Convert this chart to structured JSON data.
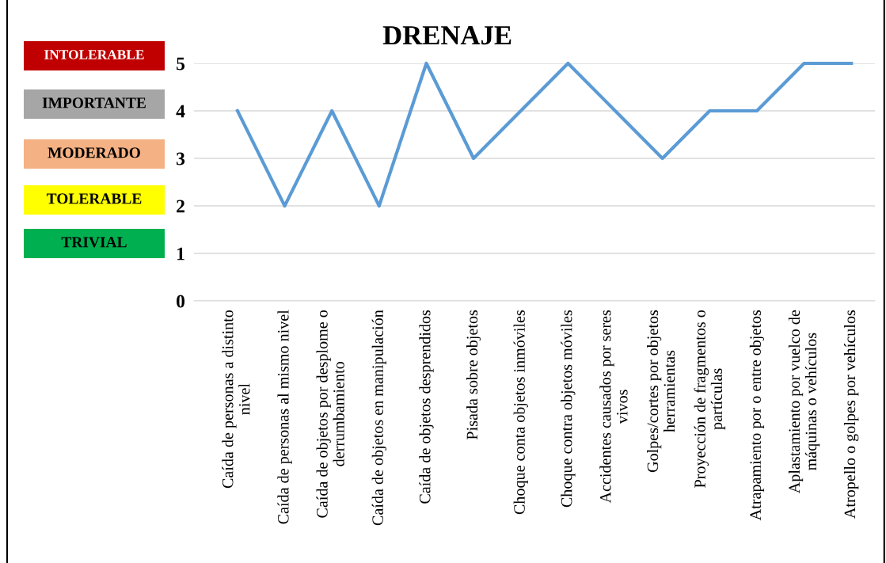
{
  "chart_data": {
    "type": "line",
    "title": "DRENAJE",
    "categories": [
      "Caída de personas a distinto nivel",
      "Caída de personas al mismo nivel",
      "Caída de objetos por desplome o derrumbamiento",
      "Caída de objetos en manipulación",
      "Caída de objetos desprendidos",
      "Pisada sobre objetos",
      "Choque conta objetos inmóviles",
      "Choque contra objetos móviles",
      "Accidentes causados por seres vivos",
      "Golpes/cortes por objetos herramientas",
      "Proyección de fragmentos o partículas",
      "Atrapamiento por o entre objetos",
      "Aplastamiento por vuelco de máquinas o vehículos",
      "Atropello o golpes por vehículos"
    ],
    "series": [
      {
        "color": "#5b9bd5",
        "values": [
          4,
          2,
          4,
          2,
          5,
          3,
          4,
          5,
          4,
          3,
          4,
          4,
          5,
          5
        ]
      }
    ],
    "ylim": [
      0,
      5
    ],
    "yticks": [
      0,
      1,
      2,
      3,
      4,
      5
    ],
    "grid": "y",
    "marker": "none",
    "line_style": "solid",
    "annotations": [
      "INTOLERABLE",
      "IMPORTANTE",
      "MODERADO",
      "TOLERABLE",
      "TRIVIAL"
    ]
  }
}
